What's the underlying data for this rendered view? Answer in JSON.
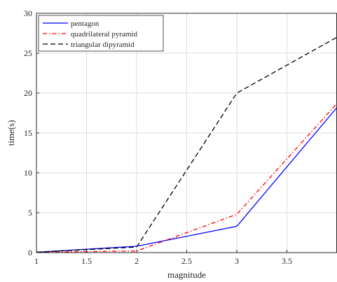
{
  "chart_data": {
    "type": "line",
    "title": "",
    "xlabel": "magnitude",
    "ylabel": "time(s)",
    "xlim": [
      1,
      4
    ],
    "ylim": [
      0,
      30
    ],
    "xticks": [
      1,
      1.5,
      2,
      2.5,
      3,
      3.5
    ],
    "xtick_labels": [
      "1",
      "1.5",
      "2",
      "2.5",
      "3",
      "3.5"
    ],
    "yticks": [
      0,
      5,
      10,
      15,
      20,
      25,
      30
    ],
    "ytick_labels": [
      "0",
      "5",
      "10",
      "15",
      "20",
      "25",
      "30"
    ],
    "grid": true,
    "legend_position": "top-left",
    "x": [
      1,
      2,
      3,
      4
    ],
    "series": [
      {
        "name": "pentagon",
        "values": [
          0.05,
          0.8,
          3.3,
          18.2
        ],
        "color": "#0000ff",
        "style": "solid"
      },
      {
        "name": "quadrilateral pyramid",
        "values": [
          0.05,
          0.2,
          4.8,
          18.7
        ],
        "color": "#ff0000",
        "style": "dashdot"
      },
      {
        "name": "triangular dipyramid",
        "values": [
          0.05,
          0.7,
          20.0,
          27.0
        ],
        "color": "#000000",
        "style": "dashed"
      }
    ]
  }
}
